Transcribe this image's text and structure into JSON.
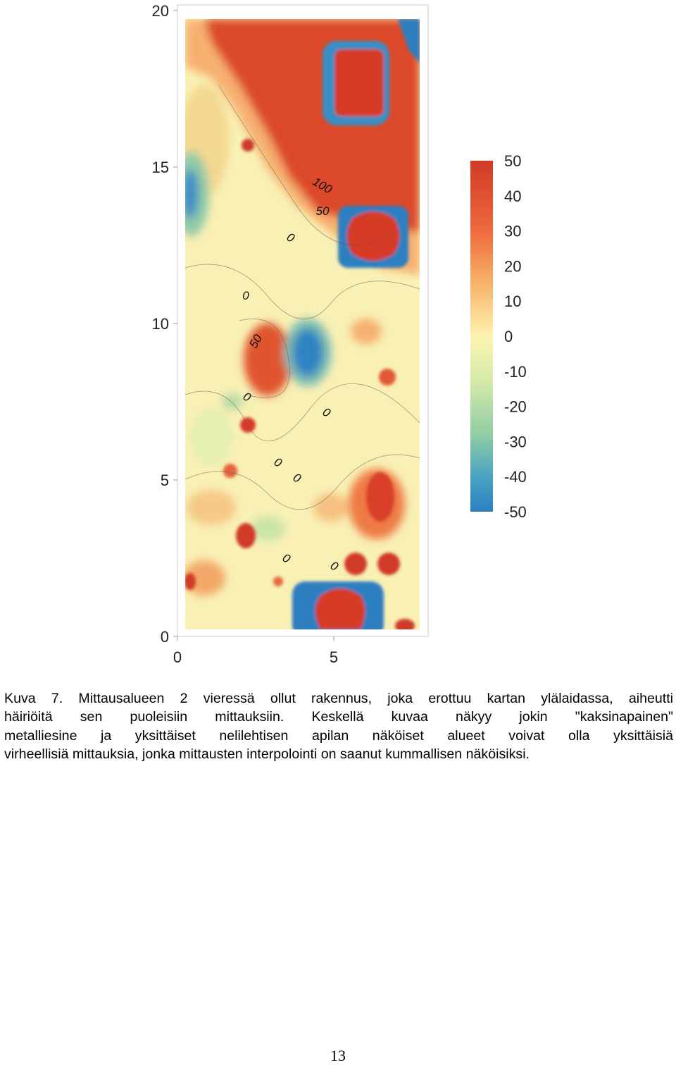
{
  "figure": {
    "x_ticks": [
      0,
      5
    ],
    "y_ticks": [
      0,
      5,
      10,
      15,
      20
    ],
    "colorbar_ticks": [
      50,
      40,
      30,
      20,
      10,
      0,
      -10,
      -20,
      -30,
      -40,
      -50
    ],
    "contour_labels": [
      "100",
      "50",
      "0",
      "0",
      "50",
      "0",
      "0",
      "0",
      "0",
      "0",
      "0"
    ]
  },
  "caption": {
    "lines": [
      "Kuva 7. Mittausalueen 2 vieressä ollut rakennus, joka erottuu kartan ylälaidassa, aiheutti",
      "häiriöitä sen puoleisiin mittauksiin. Keskellä kuvaa näkyy jokin \"kaksinapainen\"",
      "metalliesine ja yksittäiset nelilehtisen apilan näköiset alueet voivat olla yksittäisiä",
      "virheellisiä mittauksia, jonka mittausten interpolointi on saanut kummallisen näköisiksi."
    ]
  },
  "page_number": "13"
}
